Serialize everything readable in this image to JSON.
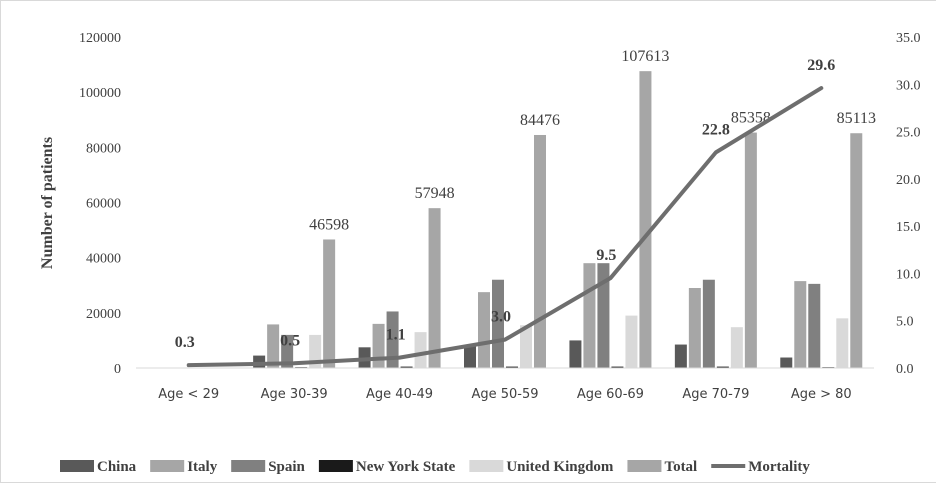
{
  "chart_data": {
    "type": "bar",
    "categories": [
      "Age < 29",
      "Age 30-39",
      "Age 40-49",
      "Age 50-59",
      "Age 60-69",
      "Age 70-79",
      "Age > 80"
    ],
    "ylabel": "Number of patients",
    "ylim": [
      0,
      120000
    ],
    "y_ticks": [
      "0",
      "20000",
      "40000",
      "60000",
      "80000",
      "100000",
      "120000"
    ],
    "y2lim": [
      0,
      35
    ],
    "y2_ticks": [
      "0.0",
      "5.0",
      "10.0",
      "15.0",
      "20.0",
      "25.0",
      "30.0",
      "35.0"
    ],
    "series": [
      {
        "name": "China",
        "values": [
          0,
          4500,
          7500,
          8300,
          10000,
          8500,
          3800
        ]
      },
      {
        "name": "Italy",
        "values": [
          0,
          15800,
          16000,
          27500,
          38000,
          29000,
          31500
        ]
      },
      {
        "name": "Spain",
        "values": [
          0,
          12000,
          20500,
          32000,
          38000,
          32000,
          30500
        ]
      },
      {
        "name": "New York State",
        "values": [
          0,
          300,
          500,
          500,
          500,
          500,
          300
        ]
      },
      {
        "name": "United Kingdom",
        "values": [
          0,
          12000,
          13000,
          15500,
          19000,
          14800,
          18000
        ]
      },
      {
        "name": "Total",
        "values": [
          0,
          46598,
          57948,
          84476,
          107613,
          85358,
          85113
        ],
        "labels": [
          "",
          "46598",
          "57948",
          "84476",
          "107613",
          "85358",
          "85113"
        ]
      }
    ],
    "line_series": {
      "name": "Mortality",
      "axis": "right",
      "values": [
        0.3,
        0.5,
        1.1,
        3.0,
        9.5,
        22.8,
        29.6
      ],
      "labels": [
        "0.3",
        "0.5",
        "1.1",
        "3.0",
        "9.5",
        "22.8",
        "29.6"
      ]
    },
    "colors": {
      "China": "#595959",
      "Italy": "#a6a6a6",
      "Spain": "#808080",
      "New York State": "#1a1a1a",
      "United Kingdom": "#d9d9d9",
      "Total": "#a6a6a6",
      "Mortality": "#6e6e6e"
    },
    "legend_position": "bottom",
    "grid": false
  }
}
